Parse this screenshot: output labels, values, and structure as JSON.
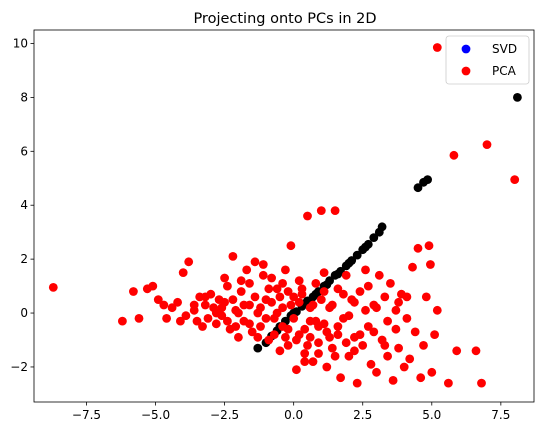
{
  "chart_data": {
    "type": "scatter",
    "title": "Projecting onto PCs in 2D",
    "xlabel": "",
    "ylabel": "",
    "xlim": [
      -9.4,
      8.7
    ],
    "ylim": [
      -3.3,
      10.5
    ],
    "x_ticks": [
      -7.5,
      -5.0,
      -2.5,
      0.0,
      2.5,
      5.0,
      7.5
    ],
    "x_tick_labels": [
      "−7.5",
      "−5.0",
      "−2.5",
      "0.0",
      "2.5",
      "5.0",
      "7.5"
    ],
    "y_ticks": [
      -2,
      0,
      2,
      4,
      6,
      8,
      10
    ],
    "y_tick_labels": [
      "−2",
      "0",
      "2",
      "4",
      "6",
      "8",
      "10"
    ],
    "grid": false,
    "legend_position": "top-right",
    "legend_entries": [
      {
        "label": "SVD",
        "color": "#0000ff"
      },
      {
        "label": "PCA",
        "color": "#ff0000"
      }
    ],
    "series": [
      {
        "name": "SVD",
        "color": "#000000",
        "note": "",
        "points": [
          [
            -1.3,
            -1.3
          ],
          [
            -1.0,
            -1.1
          ],
          [
            -0.8,
            -0.85
          ],
          [
            -0.5,
            -0.5
          ],
          [
            -0.3,
            -0.3
          ],
          [
            -0.1,
            -0.1
          ],
          [
            0.1,
            0.05
          ],
          [
            0.3,
            0.25
          ],
          [
            0.5,
            0.45
          ],
          [
            0.7,
            0.6
          ],
          [
            0.9,
            0.8
          ],
          [
            1.1,
            1.0
          ],
          [
            1.3,
            1.2
          ],
          [
            1.5,
            1.4
          ],
          [
            1.7,
            1.55
          ],
          [
            1.9,
            1.75
          ],
          [
            2.1,
            1.95
          ],
          [
            2.3,
            2.15
          ],
          [
            2.5,
            2.35
          ],
          [
            2.7,
            2.55
          ],
          [
            2.9,
            2.8
          ],
          [
            3.1,
            3.0
          ],
          [
            3.2,
            3.2
          ],
          [
            4.5,
            4.65
          ],
          [
            4.7,
            4.85
          ],
          [
            4.85,
            4.95
          ],
          [
            8.1,
            8.0
          ],
          [
            1.2,
            1.05
          ],
          [
            0.8,
            0.7
          ],
          [
            2.0,
            1.85
          ],
          [
            2.6,
            2.45
          ],
          [
            -0.6,
            -0.65
          ],
          [
            0.0,
            0.0
          ],
          [
            0.4,
            0.35
          ],
          [
            1.6,
            1.45
          ]
        ]
      },
      {
        "name": "PCA",
        "color": "#ff0000",
        "points": [
          [
            -8.7,
            0.95
          ],
          [
            -6.2,
            -0.3
          ],
          [
            -5.8,
            0.8
          ],
          [
            -5.6,
            -0.2
          ],
          [
            -5.3,
            0.9
          ],
          [
            -5.1,
            1.0
          ],
          [
            -4.9,
            0.5
          ],
          [
            -4.7,
            0.3
          ],
          [
            -4.6,
            -0.2
          ],
          [
            -4.4,
            0.2
          ],
          [
            -4.2,
            0.4
          ],
          [
            -4.0,
            1.5
          ],
          [
            -3.9,
            -0.1
          ],
          [
            -3.8,
            1.9
          ],
          [
            -3.6,
            0.1
          ],
          [
            -3.5,
            -0.3
          ],
          [
            -3.4,
            0.6
          ],
          [
            -3.3,
            -0.5
          ],
          [
            -3.2,
            0.3
          ],
          [
            -3.1,
            -0.2
          ],
          [
            -3.0,
            0.7
          ],
          [
            -2.9,
            0.2
          ],
          [
            -2.8,
            -0.4
          ],
          [
            -2.7,
            0.5
          ],
          [
            -2.6,
            -0.1
          ],
          [
            -2.5,
            0.4
          ],
          [
            -2.4,
            1.0
          ],
          [
            -2.3,
            -0.6
          ],
          [
            -2.2,
            2.1
          ],
          [
            -2.1,
            0.1
          ],
          [
            -2.0,
            -0.9
          ],
          [
            -1.9,
            0.8
          ],
          [
            -1.8,
            -0.3
          ],
          [
            -1.7,
            1.6
          ],
          [
            -1.6,
            0.3
          ],
          [
            -1.5,
            -0.7
          ],
          [
            -1.4,
            1.9
          ],
          [
            -1.3,
            0.0
          ],
          [
            -1.2,
            -0.5
          ],
          [
            -1.1,
            1.8
          ],
          [
            -1.0,
            0.5
          ],
          [
            -0.9,
            -1.0
          ],
          [
            -0.8,
            1.3
          ],
          [
            -0.7,
            -0.2
          ],
          [
            -0.6,
            0.9
          ],
          [
            -0.5,
            -1.4
          ],
          [
            -0.4,
            0.2
          ],
          [
            -0.3,
            1.6
          ],
          [
            -0.2,
            -0.6
          ],
          [
            -0.1,
            2.5
          ],
          [
            0.0,
            0.6
          ],
          [
            0.1,
            -2.1
          ],
          [
            0.2,
            -0.8
          ],
          [
            0.3,
            0.7
          ],
          [
            0.4,
            -1.5
          ],
          [
            0.5,
            3.6
          ],
          [
            0.6,
            -0.3
          ],
          [
            0.7,
            -1.8
          ],
          [
            0.8,
            1.1
          ],
          [
            0.9,
            -1.1
          ],
          [
            1.0,
            3.8
          ],
          [
            1.1,
            -0.4
          ],
          [
            1.2,
            -2.0
          ],
          [
            1.3,
            0.2
          ],
          [
            1.4,
            -1.3
          ],
          [
            1.5,
            3.8
          ],
          [
            1.6,
            -0.8
          ],
          [
            1.7,
            -2.4
          ],
          [
            1.8,
            -0.2
          ],
          [
            1.9,
            1.4
          ],
          [
            2.0,
            -1.6
          ],
          [
            2.1,
            0.5
          ],
          [
            2.2,
            -0.9
          ],
          [
            2.3,
            -2.6
          ],
          [
            2.4,
            0.8
          ],
          [
            2.5,
            -1.2
          ],
          [
            2.6,
            1.6
          ],
          [
            2.7,
            -0.5
          ],
          [
            2.8,
            -1.9
          ],
          [
            2.9,
            0.3
          ],
          [
            3.0,
            -2.2
          ],
          [
            3.1,
            1.4
          ],
          [
            3.2,
            -1.0
          ],
          [
            3.3,
            0.6
          ],
          [
            3.4,
            -1.6
          ],
          [
            3.5,
            1.1
          ],
          [
            3.6,
            -2.5
          ],
          [
            3.7,
            0.1
          ],
          [
            3.8,
            -1.3
          ],
          [
            3.9,
            0.7
          ],
          [
            4.0,
            -2.0
          ],
          [
            4.1,
            0.6
          ],
          [
            4.2,
            -1.7
          ],
          [
            4.3,
            1.7
          ],
          [
            4.4,
            -0.7
          ],
          [
            4.5,
            2.4
          ],
          [
            4.6,
            -2.4
          ],
          [
            4.7,
            -1.2
          ],
          [
            4.8,
            0.6
          ],
          [
            4.9,
            2.5
          ],
          [
            5.0,
            -2.2
          ],
          [
            5.1,
            -0.8
          ],
          [
            5.2,
            0.1
          ],
          [
            4.95,
            1.8
          ],
          [
            5.2,
            9.85
          ],
          [
            5.8,
            5.85
          ],
          [
            5.6,
            -2.6
          ],
          [
            5.9,
            -1.4
          ],
          [
            6.6,
            -1.4
          ],
          [
            6.8,
            -2.6
          ],
          [
            7.0,
            6.25
          ],
          [
            8.0,
            4.95
          ],
          [
            -2.8,
            0.0
          ],
          [
            -2.6,
            0.2
          ],
          [
            -2.4,
            -0.3
          ],
          [
            -2.2,
            0.5
          ],
          [
            -2.0,
            0.0
          ],
          [
            -1.8,
            0.3
          ],
          [
            -1.6,
            -0.4
          ],
          [
            -1.4,
            0.6
          ],
          [
            -1.2,
            0.2
          ],
          [
            -1.0,
            -0.2
          ],
          [
            -0.8,
            0.4
          ],
          [
            -0.6,
            0.0
          ],
          [
            -0.4,
            -0.5
          ],
          [
            -0.2,
            0.8
          ],
          [
            0.0,
            -0.2
          ],
          [
            0.2,
            0.4
          ],
          [
            0.4,
            -0.6
          ],
          [
            0.6,
            0.2
          ],
          [
            0.8,
            -0.3
          ],
          [
            1.0,
            0.5
          ],
          [
            1.2,
            -0.7
          ],
          [
            1.4,
            0.3
          ],
          [
            1.6,
            -0.5
          ],
          [
            1.8,
            0.7
          ],
          [
            2.0,
            -0.1
          ],
          [
            2.2,
            0.4
          ],
          [
            2.4,
            -0.8
          ],
          [
            2.6,
            0.1
          ],
          [
            -0.9,
            0.9
          ],
          [
            -0.7,
            -0.8
          ],
          [
            -0.5,
            0.6
          ],
          [
            -0.3,
            -0.9
          ],
          [
            -0.1,
            0.3
          ],
          [
            0.1,
            -1.0
          ],
          [
            0.3,
            0.9
          ],
          [
            0.5,
            -1.2
          ],
          [
            0.7,
            0.3
          ],
          [
            0.9,
            -0.5
          ],
          [
            1.1,
            0.8
          ],
          [
            1.3,
            -0.9
          ],
          [
            -1.6,
            1.1
          ],
          [
            -1.3,
            -0.9
          ],
          [
            -2.1,
            -0.5
          ],
          [
            -3.2,
            0.6
          ],
          [
            -3.6,
            0.3
          ],
          [
            -4.1,
            -0.3
          ],
          [
            1.5,
            -1.6
          ],
          [
            2.2,
            -1.4
          ],
          [
            3.4,
            -0.3
          ],
          [
            3.8,
            0.4
          ],
          [
            3.0,
            0.2
          ],
          [
            2.7,
            1.0
          ],
          [
            1.9,
            -1.1
          ],
          [
            1.1,
            1.5
          ],
          [
            0.2,
            1.2
          ],
          [
            -0.4,
            1.1
          ],
          [
            -1.1,
            1.4
          ],
          [
            -1.9,
            1.2
          ],
          [
            -2.5,
            1.3
          ],
          [
            0.6,
            -0.9
          ],
          [
            0.9,
            -1.5
          ],
          [
            0.4,
            -1.8
          ],
          [
            -0.2,
            -1.2
          ],
          [
            1.6,
            0.9
          ],
          [
            2.9,
            -0.7
          ],
          [
            3.3,
            -1.2
          ],
          [
            3.7,
            -0.6
          ],
          [
            4.1,
            -0.2
          ]
        ]
      }
    ]
  }
}
